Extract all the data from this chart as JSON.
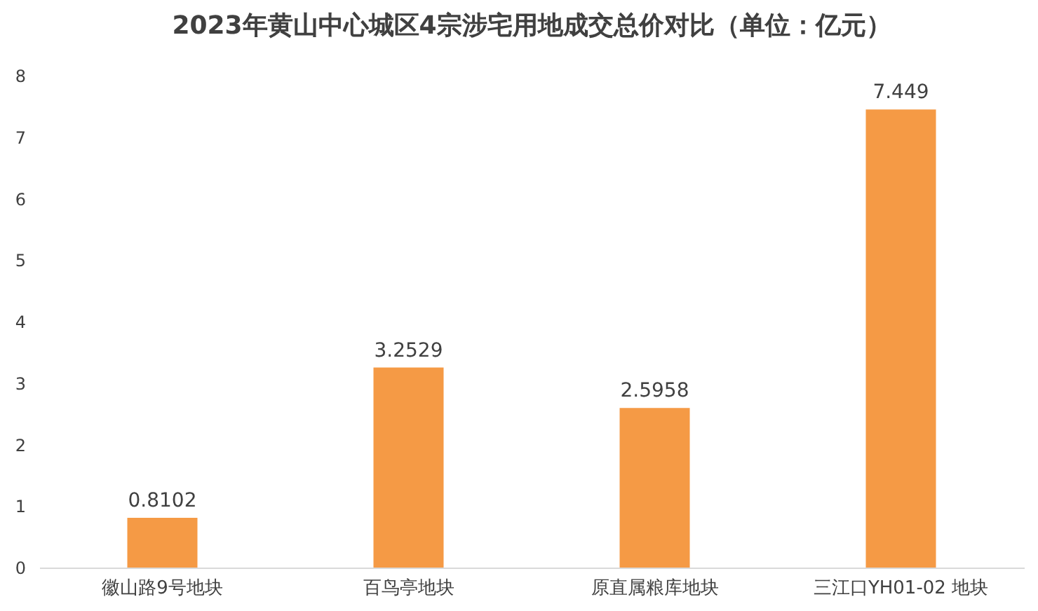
{
  "chart_data": {
    "type": "bar",
    "title": "2023年黄山中心城区4宗涉宅用地成交总价对比（单位：亿元）",
    "categories": [
      "徽山路9号地块",
      "百鸟亭地块",
      "原直属粮库地块",
      "三江口YH01-02 地块"
    ],
    "values": [
      0.8102,
      3.2529,
      2.5958,
      7.449
    ],
    "color": "#f59a45",
    "ylim": [
      0,
      8
    ],
    "yticks": [
      0,
      1,
      2,
      3,
      4,
      5,
      6,
      7,
      8
    ],
    "grid": false,
    "data_labels": true
  }
}
